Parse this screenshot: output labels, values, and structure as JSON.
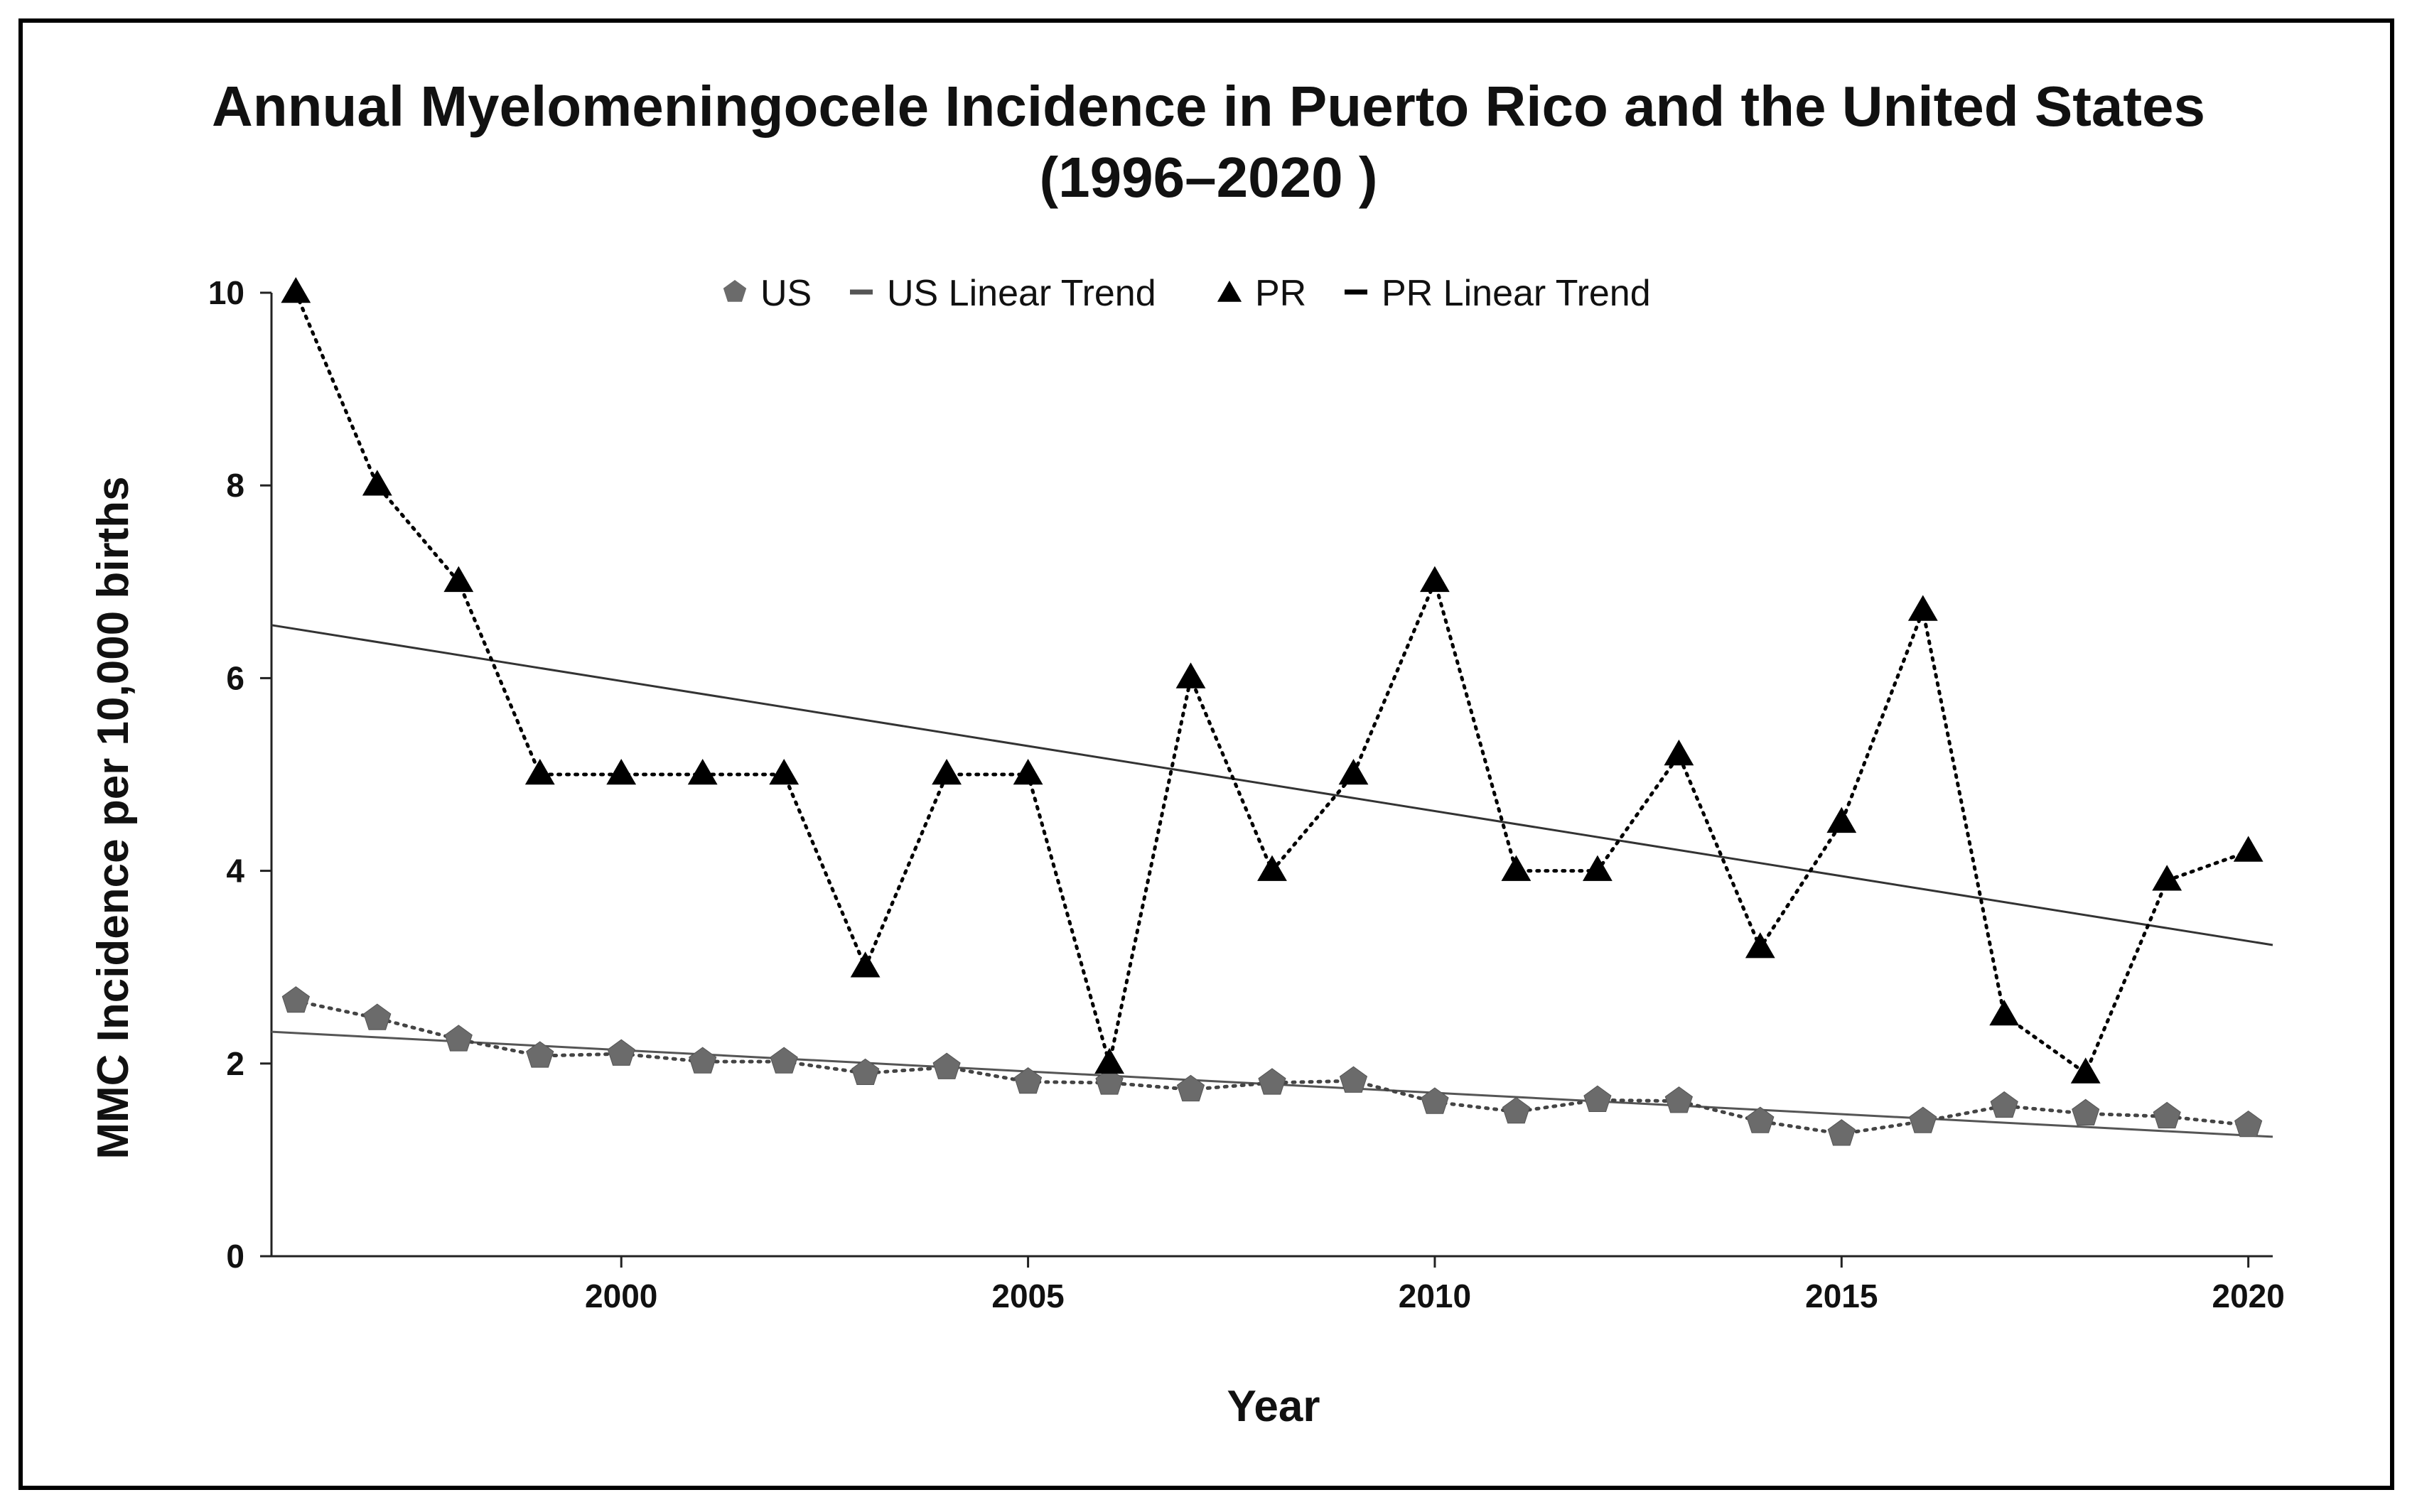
{
  "chart_data": {
    "type": "line",
    "title": "Annual Myelomeningocele Incidence in Puerto Rico and the United States",
    "subtitle": "(1996–2020 )",
    "xlabel": "Year",
    "ylabel": "MMC Incidence per 10,000 births",
    "xlim": [
      1995.7,
      2020.3
    ],
    "ylim": [
      0,
      10
    ],
    "xticks": [
      2000,
      2005,
      2010,
      2015,
      2020
    ],
    "yticks": [
      0,
      2,
      4,
      6,
      8,
      10
    ],
    "legend_position": "top",
    "series": [
      {
        "name": "US",
        "marker": "pentagon",
        "line": "dotted",
        "color": "#6b6b6b",
        "x": [
          1996,
          1997,
          1998,
          1999,
          2000,
          2001,
          2002,
          2003,
          2004,
          2005,
          2006,
          2007,
          2008,
          2009,
          2010,
          2011,
          2012,
          2013,
          2014,
          2015,
          2016,
          2017,
          2018,
          2019,
          2020
        ],
        "values": [
          2.65,
          2.47,
          2.25,
          2.08,
          2.1,
          2.02,
          2.02,
          1.9,
          1.96,
          1.81,
          1.8,
          1.73,
          1.8,
          1.82,
          1.6,
          1.5,
          1.62,
          1.61,
          1.4,
          1.27,
          1.4,
          1.56,
          1.48,
          1.45,
          1.36
        ]
      },
      {
        "name": "US Linear Trend",
        "line": "solid",
        "color": "#555555",
        "x": [
          1995.7,
          2020.3
        ],
        "values": [
          2.33,
          1.24
        ]
      },
      {
        "name": "PR",
        "marker": "triangle",
        "line": "dotted",
        "color": "#000000",
        "x": [
          1996,
          1997,
          1998,
          1999,
          2000,
          2001,
          2002,
          2003,
          2004,
          2005,
          2006,
          2007,
          2008,
          2009,
          2010,
          2011,
          2012,
          2013,
          2014,
          2015,
          2016,
          2017,
          2018,
          2019,
          2020
        ],
        "values": [
          10,
          8,
          7,
          5,
          5,
          5,
          5,
          3,
          5,
          5,
          2,
          6,
          4,
          5,
          7,
          4,
          4,
          5.2,
          3.2,
          4.5,
          6.7,
          2.5,
          1.9,
          3.9,
          4.2
        ]
      },
      {
        "name": "PR Linear Trend",
        "line": "solid",
        "color": "#333333",
        "x": [
          1995.7,
          2020.3
        ],
        "values": [
          6.55,
          3.23
        ]
      }
    ]
  }
}
